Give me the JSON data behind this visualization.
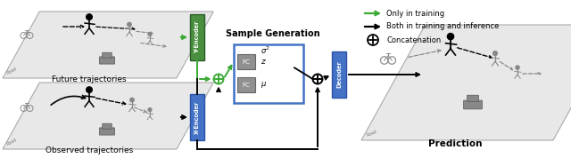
{
  "bg_color": "#ffffff",
  "green_color": "#3aaa35",
  "blue_color": "#4472c4",
  "gray_color": "#808080",
  "light_gray": "#d8d8d8",
  "sc_color": "#888888",
  "y_encoder_label": "Y-Encoder",
  "x_encoder_label": "X-Encoder",
  "decoder_label": "Decoder",
  "sample_gen_label": "Sample Generation",
  "future_traj_label": "Future trajectories",
  "observed_traj_label": "Observed trajectories",
  "prediction_label": "Prediction",
  "legend_green": "Only in training",
  "legend_black": "Both in training and inference",
  "legend_concat": "Concatenation",
  "fc_label": "FC",
  "sigma_label": "$\\sigma^2$",
  "z_label": "$z$",
  "mu_label": "$\\mu$",
  "y_enc_color": "#4a8f3f",
  "x_enc_color": "#4472c4",
  "dec_color": "#4472c4",
  "sg_border": "#4472c4"
}
